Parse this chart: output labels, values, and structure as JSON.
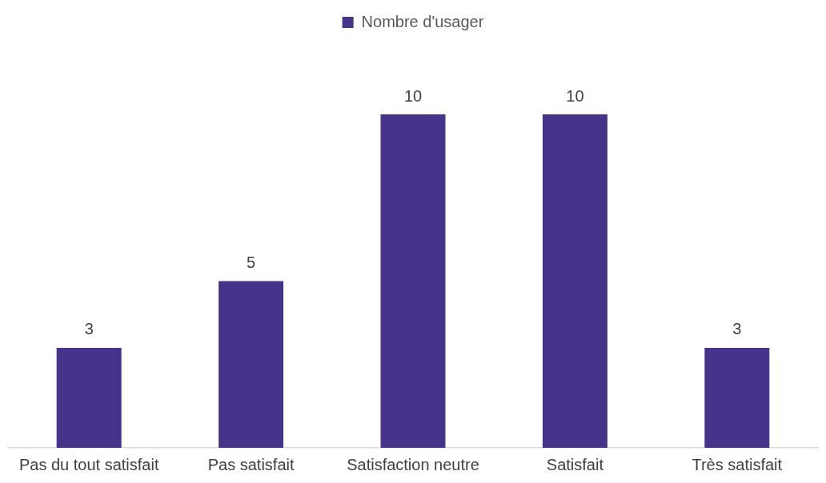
{
  "chart_data": {
    "type": "bar",
    "categories": [
      "Pas du tout satisfait",
      "Pas satisfait",
      "Satisfaction neutre",
      "Satisfait",
      "Très satisfait"
    ],
    "series": [
      {
        "name": "Nombre d'usager",
        "color": "#45348a",
        "values": [
          3,
          5,
          10,
          10,
          3
        ]
      }
    ],
    "data_labels": true,
    "legend": "top",
    "grid": false,
    "tick_labels": "x"
  }
}
